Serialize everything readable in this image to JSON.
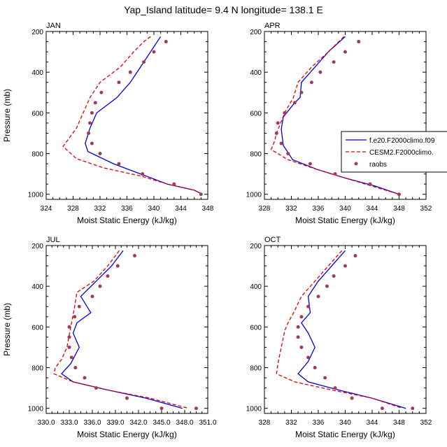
{
  "figure_title": "Yap_Island  latitude= 9.4 N longitude= 138.1 E",
  "colors": {
    "model1": "#0000dd",
    "model2": "#dd0000",
    "obs": "#a03c5a",
    "axis": "#000000"
  },
  "legend": {
    "entries": [
      {
        "label": "f.e20.F2000climo.f09",
        "style": "solid"
      },
      {
        "label": "CESM2.F2000climo.",
        "style": "dashed"
      },
      {
        "label": "raobs",
        "style": "marker"
      }
    ]
  },
  "chart_data": [
    {
      "type": "line",
      "panel": "JAN",
      "xlabel": "Moist Static Energy (kJ/kg)",
      "ylabel": "Pressure (mb)",
      "xlim": [
        324,
        348
      ],
      "xticks": [
        "324",
        "328",
        "332",
        "336",
        "340",
        "344",
        "348"
      ],
      "ylim": [
        200,
        1025
      ],
      "yticks": [
        "200",
        "400",
        "600",
        "800",
        "1000"
      ],
      "series": [
        {
          "name": "f.e20.F2000climo.f09",
          "x": [
            341,
            339.5,
            338,
            336.5,
            334.5,
            331.5,
            330.5,
            329.8,
            330.2,
            334,
            338,
            342,
            346,
            347.2
          ],
          "y": [
            225,
            300,
            375,
            450,
            525,
            600,
            675,
            750,
            790,
            850,
            900,
            950,
            980,
            1000
          ]
        },
        {
          "name": "CESM2.F2000climo.",
          "x": [
            339.5,
            338.5,
            337,
            335,
            332,
            330.5,
            328.5,
            326.5,
            328.5,
            332.5,
            338,
            342,
            346,
            347.2
          ],
          "y": [
            225,
            250,
            300,
            375,
            450,
            525,
            675,
            765,
            825,
            870,
            910,
            950,
            980,
            1000
          ]
        },
        {
          "name": "raobs",
          "x": [
            341.8,
            340,
            338.5,
            336.5,
            334.8,
            332.2,
            331.3,
            330.8,
            330.5,
            330.3,
            330.8,
            332,
            334.8,
            338.3,
            343,
            347
          ],
          "y": [
            250,
            300,
            350,
            400,
            450,
            500,
            550,
            600,
            650,
            700,
            750,
            800,
            850,
            900,
            950,
            1000
          ]
        }
      ]
    },
    {
      "type": "line",
      "panel": "APR",
      "xlabel": "Moist Static Energy (kJ/kg)",
      "ylabel": "",
      "xlim": [
        328,
        352
      ],
      "xticks": [
        "328",
        "332",
        "336",
        "340",
        "344",
        "348",
        "352"
      ],
      "ylim": [
        200,
        1025
      ],
      "yticks": [
        "200",
        "400",
        "600",
        "800",
        "1000"
      ],
      "series": [
        {
          "name": "f.e20.F2000climo.f09",
          "x": [
            340,
            337.5,
            335.5,
            333.5,
            333.3,
            332.5,
            330.8,
            330.5,
            330.8,
            332.2,
            336,
            340,
            344.5,
            348
          ],
          "y": [
            225,
            300,
            375,
            450,
            525,
            550,
            620,
            680,
            760,
            830,
            880,
            920,
            960,
            1000
          ]
        },
        {
          "name": "CESM2.F2000climo.",
          "x": [
            339.8,
            337.5,
            335,
            333,
            332.3,
            331,
            329.8,
            329.5,
            329,
            331.5,
            336,
            340,
            344,
            348
          ],
          "y": [
            225,
            300,
            375,
            450,
            525,
            600,
            700,
            740,
            780,
            830,
            880,
            920,
            960,
            1000
          ]
        },
        {
          "name": "raobs",
          "x": [
            342,
            340,
            338.3,
            336.3,
            335,
            333.5,
            332.5,
            331,
            330,
            329.8,
            330.5,
            331.5,
            334.8,
            338.5,
            343.7,
            348
          ],
          "y": [
            250,
            300,
            350,
            400,
            450,
            500,
            550,
            600,
            650,
            700,
            750,
            800,
            850,
            900,
            950,
            1000
          ]
        }
      ]
    },
    {
      "type": "line",
      "panel": "JUL",
      "xlabel": "Moist Static Energy (kJ/kg)",
      "ylabel": "Pressure (mb)",
      "xlim": [
        330,
        351
      ],
      "xticks": [
        "330.0",
        "333.0",
        "336.0",
        "339.0",
        "342.0",
        "345.0",
        "348.0",
        "351.0"
      ],
      "ylim": [
        200,
        1025
      ],
      "yticks": [
        "200",
        "400",
        "600",
        "800",
        "1000"
      ],
      "series": [
        {
          "name": "f.e20.F2000climo.f09",
          "x": [
            340,
            338.5,
            336.5,
            334.5,
            335.8,
            334,
            333.5,
            334.3,
            333.2,
            332,
            333.5,
            338,
            343,
            347.7
          ],
          "y": [
            225,
            300,
            375,
            450,
            530,
            580,
            630,
            700,
            780,
            830,
            870,
            910,
            950,
            1000
          ]
        },
        {
          "name": "CESM2.F2000climo.",
          "x": [
            339.5,
            338,
            336.2,
            334,
            333.7,
            333.2,
            332.7,
            332,
            331.2,
            331,
            333.5,
            338,
            343.5,
            348.5
          ],
          "y": [
            225,
            300,
            375,
            430,
            500,
            600,
            700,
            760,
            800,
            830,
            870,
            910,
            950,
            1000
          ]
        },
        {
          "name": "raobs",
          "x": [
            341.5,
            339.3,
            338,
            337,
            336,
            334.3,
            333.7,
            333,
            333,
            333,
            333.3,
            333.8,
            335,
            336.5,
            340.5,
            345,
            349.5
          ],
          "y": [
            250,
            300,
            350,
            400,
            450,
            500,
            550,
            600,
            650,
            700,
            750,
            800,
            850,
            900,
            950,
            1000,
            1000
          ]
        }
      ]
    },
    {
      "type": "line",
      "panel": "OCT",
      "xlabel": "Moist Static Energy (kJ/kg)",
      "ylabel": "",
      "xlim": [
        328,
        352
      ],
      "xticks": [
        "328",
        "332",
        "336",
        "340",
        "344",
        "348",
        "352"
      ],
      "ylim": [
        200,
        1025
      ],
      "yticks": [
        "200",
        "400",
        "600",
        "800",
        "1000"
      ],
      "series": [
        {
          "name": "f.e20.F2000climo.f09",
          "x": [
            340,
            338,
            336,
            334.5,
            334.8,
            333.5,
            334.5,
            335.5,
            334.5,
            333,
            334.5,
            339,
            344,
            349
          ],
          "y": [
            225,
            300,
            375,
            450,
            530,
            580,
            630,
            700,
            770,
            830,
            870,
            910,
            950,
            1000
          ]
        },
        {
          "name": "CESM2.F2000climo.",
          "x": [
            339.5,
            337.5,
            335.5,
            333.5,
            332.5,
            331.5,
            331,
            330.5,
            330,
            329.8,
            332.5,
            338,
            344,
            348.5
          ],
          "y": [
            225,
            300,
            375,
            450,
            520,
            580,
            620,
            700,
            780,
            830,
            870,
            910,
            950,
            1000
          ]
        },
        {
          "name": "raobs",
          "x": [
            341.5,
            340,
            338.3,
            337.3,
            336,
            334.5,
            333.5,
            333,
            333,
            333.5,
            334.5,
            335.5,
            337,
            338.5,
            341,
            345.5,
            350
          ],
          "y": [
            250,
            300,
            350,
            400,
            450,
            500,
            550,
            600,
            650,
            700,
            750,
            800,
            850,
            900,
            950,
            1000,
            1000
          ]
        }
      ]
    }
  ]
}
